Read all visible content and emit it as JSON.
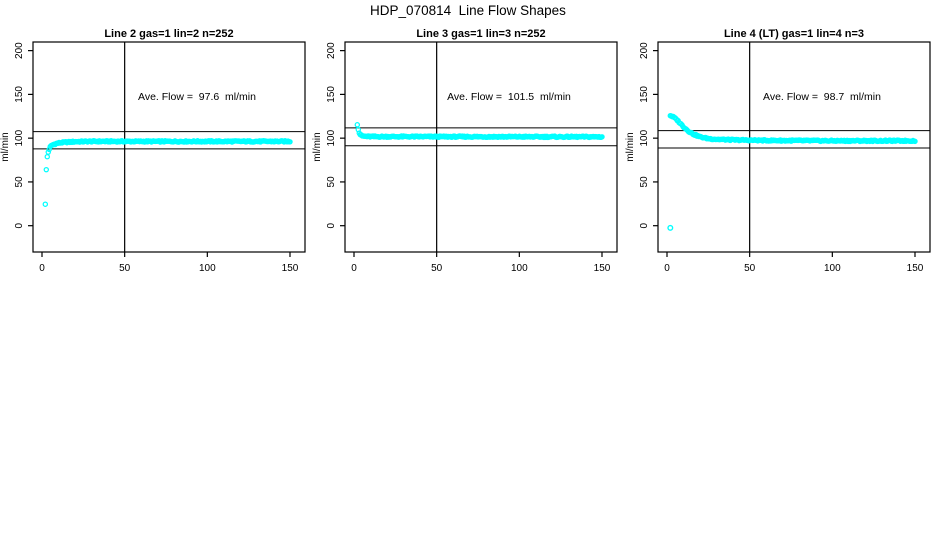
{
  "figure": {
    "title": "HDP_070814  Line Flow Shapes"
  },
  "chart_data": {
    "type": "scatter",
    "title": "HDP_070814  Line Flow Shapes",
    "xlabel": "",
    "ylabel": "ml/min",
    "x_ticks": [
      0,
      50,
      100,
      150
    ],
    "y_ticks": [
      0,
      50,
      100,
      150,
      200
    ],
    "xlim": [
      -5.5,
      159
    ],
    "ylim": [
      -30,
      210
    ],
    "grid": false,
    "legend": "none",
    "point_color": "#00FFFF",
    "axis_color": "#000000",
    "vline_x": 50,
    "ref_line_rule": "average flow plus/minus 10%",
    "panels": [
      {
        "title": "Line 2 gas=1 lin=2 n=252",
        "annotation": "Ave. Flow =  97.6  ml/min",
        "avg_flow": 97.6,
        "n_label": 252,
        "points_drawn": 250,
        "ref_lines": [
          107.4,
          87.8
        ],
        "x_range": [
          2,
          150
        ],
        "series_keypoints": [
          [
            2,
            25
          ],
          [
            2.6,
            64
          ],
          [
            3.2,
            79
          ],
          [
            4,
            86
          ],
          [
            5,
            90
          ],
          [
            6,
            92
          ],
          [
            8,
            93.5
          ],
          [
            10,
            94.5
          ],
          [
            14,
            95.3
          ],
          [
            20,
            96
          ],
          [
            30,
            96.3
          ],
          [
            150,
            96.3
          ]
        ],
        "outliers": []
      },
      {
        "title": "Line 3 gas=1 lin=3 n=252",
        "annotation": "Ave. Flow =  101.5  ml/min",
        "avg_flow": 101.5,
        "n_label": 252,
        "points_drawn": 250,
        "ref_lines": [
          111.7,
          91.4
        ],
        "x_range": [
          2,
          150
        ],
        "series_keypoints": [
          [
            2,
            116
          ],
          [
            3,
            106.5
          ],
          [
            4,
            103.5
          ],
          [
            5,
            102.5
          ],
          [
            7,
            102
          ],
          [
            10,
            101.8
          ],
          [
            150,
            101.5
          ]
        ],
        "outliers": []
      },
      {
        "title": "Line 4 (LT) gas=1 lin=4 n=3",
        "annotation": "Ave. Flow =  98.7  ml/min",
        "avg_flow": 98.7,
        "n_label": 3,
        "points_drawn": 250,
        "ref_lines": [
          108.6,
          88.8
        ],
        "x_range": [
          2,
          150
        ],
        "series_keypoints": [
          [
            2,
            126
          ],
          [
            4,
            124
          ],
          [
            6,
            121
          ],
          [
            8,
            117
          ],
          [
            10,
            113
          ],
          [
            13,
            108
          ],
          [
            16,
            104.5
          ],
          [
            20,
            101.5
          ],
          [
            25,
            99.5
          ],
          [
            30,
            98.7
          ],
          [
            40,
            98
          ],
          [
            60,
            97.4
          ],
          [
            100,
            97
          ],
          [
            150,
            97
          ]
        ],
        "outliers": [
          [
            2,
            -2.5
          ]
        ]
      }
    ]
  }
}
